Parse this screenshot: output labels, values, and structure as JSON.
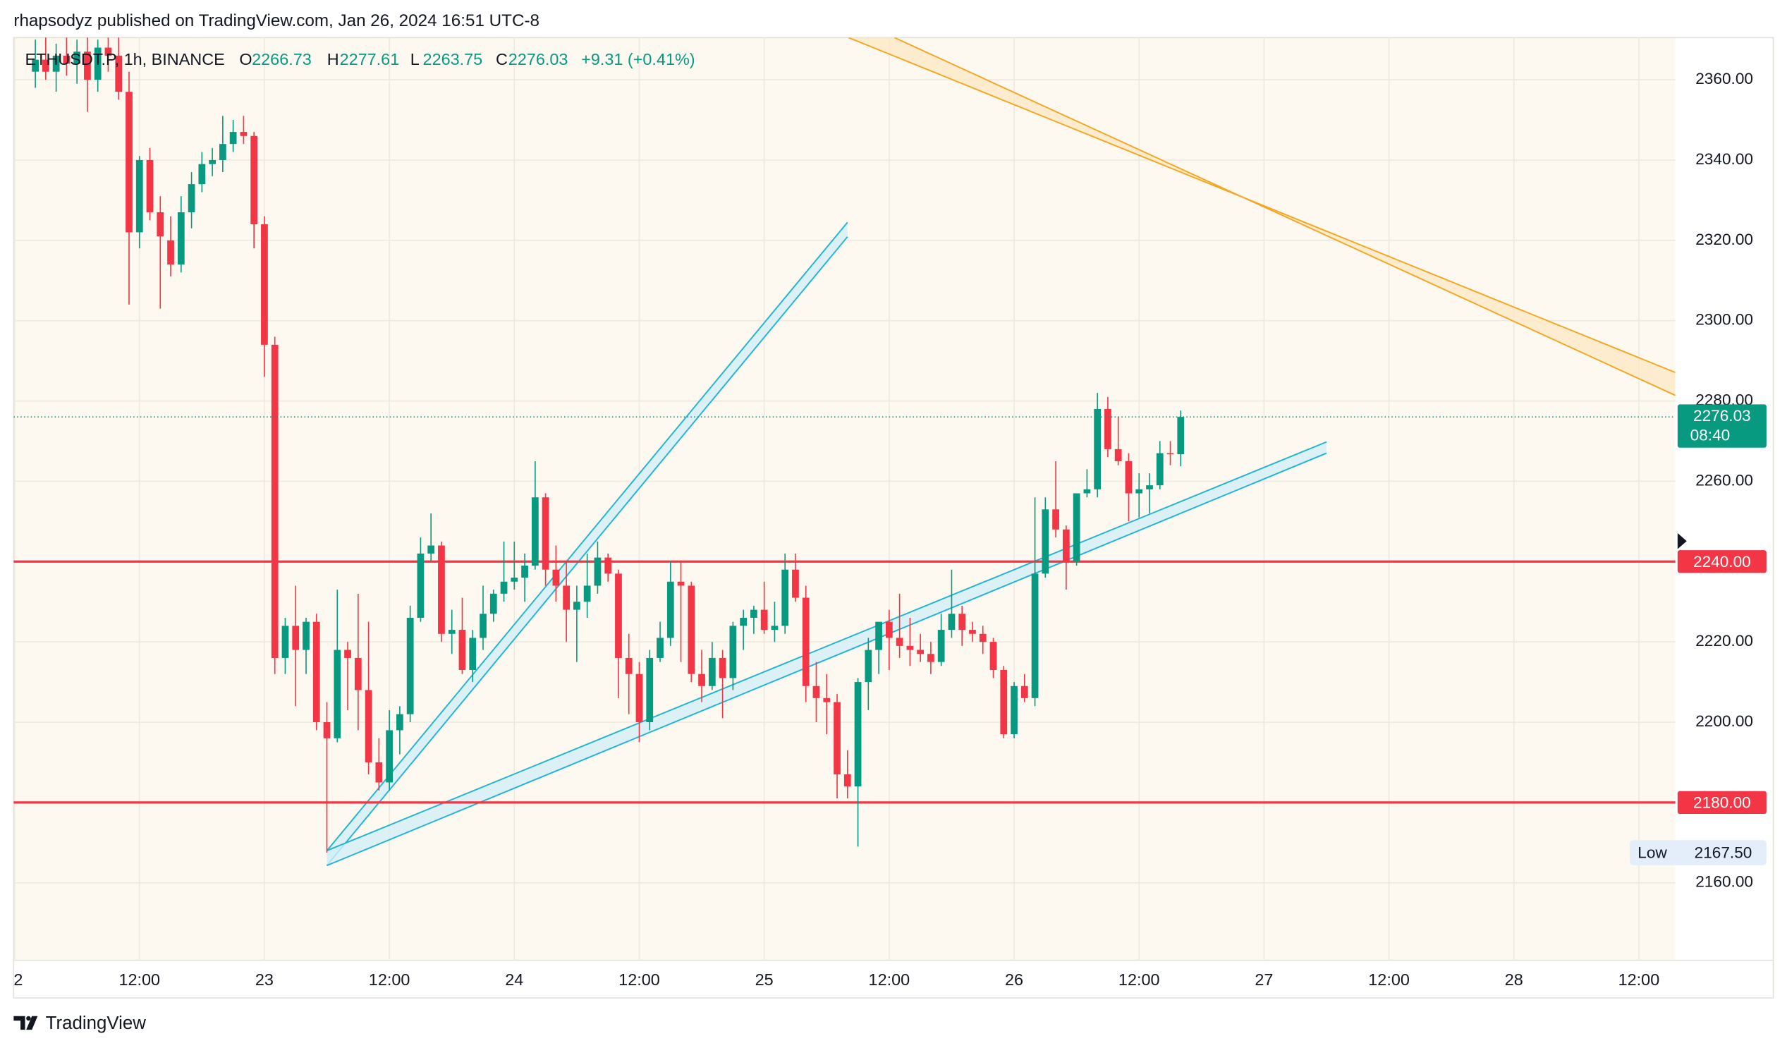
{
  "header": "rhapsodyz published on TradingView.com, Jan 26, 2024 16:51 UTC-8",
  "footer": "TradingView",
  "chart_data": {
    "type": "candlestick",
    "symbol": "ETHUSDT.P, 1h, BINANCE",
    "ohlc_letters": [
      "O",
      "H",
      "L",
      "C"
    ],
    "change": "+9.31 (+0.41%)",
    "countdown": "08:40",
    "up_color": "#089981",
    "down_color": "#f23645",
    "grid": true,
    "x": [
      2,
      3,
      4,
      5,
      6,
      7,
      8,
      9,
      10,
      11,
      12,
      13,
      14,
      15,
      16,
      17,
      18,
      19,
      20,
      21,
      22,
      23,
      24,
      25,
      26,
      27,
      28,
      29,
      30,
      31,
      32,
      33,
      34,
      35,
      36,
      37,
      38,
      39,
      40,
      41,
      42,
      43,
      44,
      45,
      46,
      47,
      48,
      49,
      50,
      51,
      52,
      53,
      54,
      55,
      56,
      57,
      58,
      59,
      60,
      61,
      62,
      63,
      64,
      65,
      66,
      67,
      68,
      69,
      70,
      71,
      72,
      73,
      74,
      75,
      76,
      77,
      78,
      79,
      80,
      81,
      82,
      83,
      84,
      85,
      86,
      87,
      88,
      89,
      90,
      91,
      92,
      93,
      94,
      95,
      96,
      97,
      98,
      99,
      100,
      101,
      102,
      103,
      104,
      105,
      106,
      107,
      108,
      109,
      110,
      111,
      112
    ],
    "open": [
      2362,
      2365,
      2362,
      2366,
      2364,
      2367,
      2360,
      2368,
      2366,
      2357,
      2322,
      2340,
      2327,
      2320,
      2314,
      2327,
      2334,
      2339,
      2340,
      2344,
      2347,
      2346,
      2324,
      2294,
      2216,
      2224,
      2218,
      2225,
      2200,
      2196,
      2218,
      2216,
      2208,
      2190,
      2185,
      2198,
      2202,
      2226,
      2242,
      2244,
      2222,
      2223,
      2213,
      2221,
      2227,
      2232,
      2235,
      2236,
      2239,
      2256,
      2238,
      2234,
      2228,
      2230,
      2234,
      2241,
      2237,
      2216,
      2212,
      2200,
      2216,
      2221,
      2235,
      2234,
      2212,
      2209,
      2216,
      2211,
      2224,
      2226,
      2228,
      2223,
      2224,
      2238,
      2231,
      2209,
      2206,
      2205,
      2187,
      2184,
      2210,
      2218,
      2225,
      2221,
      2219,
      2218,
      2217,
      2215,
      2223,
      2227,
      2223,
      2222,
      2220,
      2213,
      2197,
      2209,
      2206,
      2237,
      2253,
      2248,
      2240,
      2257,
      2258,
      2278,
      2268,
      2265,
      2257,
      2258,
      2259,
      2267,
      2266.73
    ],
    "high": [
      2370,
      2371,
      2369,
      2371,
      2370,
      2371,
      2370,
      2371,
      2371,
      2362,
      2341,
      2343,
      2331,
      2326,
      2331,
      2337,
      2342,
      2343,
      2351,
      2350,
      2351,
      2347,
      2326,
      2296,
      2226,
      2234,
      2226,
      2227,
      2205,
      2233,
      2220,
      2232,
      2225,
      2196,
      2203,
      2204,
      2229,
      2246,
      2252,
      2245,
      2228,
      2231,
      2223,
      2234,
      2233,
      2245,
      2245,
      2242,
      2265,
      2257,
      2244,
      2240,
      2234,
      2242,
      2245,
      2242,
      2238,
      2222,
      2215,
      2218,
      2225,
      2240,
      2240,
      2235,
      2218,
      2220,
      2218,
      2225,
      2228,
      2229,
      2235,
      2230,
      2242,
      2242,
      2234,
      2215,
      2212,
      2207,
      2193,
      2211,
      2221,
      2225,
      2228,
      2232,
      2226,
      2222,
      2220,
      2227,
      2238,
      2229,
      2225,
      2224,
      2221,
      2214,
      2210,
      2212,
      2256,
      2256,
      2265,
      2249,
      2257,
      2263,
      2282,
      2281,
      2276,
      2267,
      2262,
      2262,
      2270,
      2270,
      2277.61
    ],
    "low": [
      2358,
      2360,
      2357,
      2361,
      2359,
      2352,
      2357,
      2362,
      2355,
      2304,
      2318,
      2325,
      2303,
      2311,
      2312,
      2323,
      2332,
      2336,
      2337,
      2342,
      2344,
      2318,
      2286,
      2212,
      2212,
      2204,
      2212,
      2198,
      2167.5,
      2195,
      2203,
      2198,
      2187,
      2183,
      2183,
      2192,
      2200,
      2225,
      2240,
      2220,
      2217,
      2212,
      2210,
      2218,
      2225,
      2230,
      2233,
      2230,
      2238,
      2234,
      2230,
      2220,
      2215,
      2226,
      2232,
      2235,
      2206,
      2202,
      2195,
      2198,
      2215,
      2219,
      2215,
      2210,
      2205,
      2208,
      2201,
      2208,
      2218,
      2222,
      2222,
      2220,
      2222,
      2230,
      2205,
      2200,
      2197,
      2181,
      2181,
      2169,
      2203,
      2212,
      2213,
      2216,
      2214,
      2215,
      2212,
      2214,
      2221,
      2219,
      2220,
      2217,
      2211,
      2196,
      2196,
      2205,
      2204,
      2236,
      2246,
      2233,
      2239,
      2256,
      2256,
      2266,
      2264,
      2250,
      2251,
      2252,
      2258,
      2264,
      2263.75
    ],
    "close": [
      2365,
      2362,
      2366,
      2364,
      2367,
      2360,
      2368,
      2366,
      2357,
      2322,
      2340,
      2327,
      2321,
      2314,
      2327,
      2334,
      2339,
      2340,
      2344,
      2347,
      2346,
      2324,
      2294,
      2216,
      2224,
      2218,
      2225,
      2200,
      2196,
      2218,
      2216,
      2208,
      2190,
      2185,
      2198,
      2202,
      2226,
      2242,
      2244,
      2222,
      2223,
      2213,
      2221,
      2227,
      2232,
      2235,
      2236,
      2239,
      2256,
      2238,
      2234,
      2228,
      2230,
      2234,
      2241,
      2237,
      2216,
      2212,
      2200,
      2216,
      2221,
      2235,
      2234,
      2212,
      2209,
      2216,
      2211,
      2224,
      2226,
      2228,
      2223,
      2224,
      2238,
      2231,
      2209,
      2206,
      2205,
      2187,
      2184,
      2210,
      2218,
      2225,
      2221,
      2219,
      2218,
      2217,
      2215,
      2223,
      2227,
      2223,
      2222,
      2220,
      2213,
      2197,
      2209,
      2206,
      2237,
      2253,
      2248,
      2240,
      2257,
      2258,
      2278,
      2268,
      2265,
      2257,
      2258,
      2259,
      2267,
      2266.73,
      2276.03
    ],
    "xlim": [
      -0.08,
      159.5
    ],
    "xticks": [
      {
        "value": 0,
        "label": "2"
      },
      {
        "value": 12,
        "label": "12:00"
      },
      {
        "value": 24,
        "label": "23"
      },
      {
        "value": 36,
        "label": "12:00"
      },
      {
        "value": 48,
        "label": "24"
      },
      {
        "value": 60,
        "label": "12:00"
      },
      {
        "value": 72,
        "label": "25"
      },
      {
        "value": 84,
        "label": "12:00"
      },
      {
        "value": 96,
        "label": "26"
      },
      {
        "value": 108,
        "label": "12:00"
      },
      {
        "value": 120,
        "label": "27"
      },
      {
        "value": 132,
        "label": "12:00"
      },
      {
        "value": 144,
        "label": "28"
      },
      {
        "value": 156,
        "label": "12:00"
      }
    ],
    "ylim": [
      2140.7,
      2370.5
    ],
    "yticks": [
      {
        "value": 2160,
        "label": "2160.00"
      },
      {
        "value": 2180,
        "label": "2180.00"
      },
      {
        "value": 2200,
        "label": "2200.00"
      },
      {
        "value": 2220,
        "label": "2220.00"
      },
      {
        "value": 2240,
        "label": "2240.00"
      },
      {
        "value": 2260,
        "label": "2260.00"
      },
      {
        "value": 2280,
        "label": "2280.00"
      },
      {
        "value": 2300,
        "label": "2300.00"
      },
      {
        "value": 2320,
        "label": "2320.00"
      },
      {
        "value": 2340,
        "label": "2340.00"
      },
      {
        "value": 2360,
        "label": "2360.00"
      }
    ],
    "hlines": [
      {
        "value": 2240,
        "label": "2240.00",
        "color": "#f23645"
      },
      {
        "value": 2180,
        "label": "2180.00",
        "color": "#f23645"
      }
    ],
    "low_marker": {
      "label": "Low",
      "value": 2167.5,
      "value_label": "2167.50"
    },
    "channels": [
      {
        "color": "#22b3d6",
        "fill": "#d3eff7",
        "lines": [
          {
            "x": [
              30,
              80
            ],
            "y": [
              2164.3,
              2320.9
            ]
          },
          {
            "x": [
              30,
              80
            ],
            "y": [
              2168,
              2324.5
            ]
          }
        ]
      },
      {
        "color": "#22b3d6",
        "fill": "#d3eff7",
        "lines": [
          {
            "x": [
              30,
              126
            ],
            "y": [
              2164.3,
              2267
            ]
          },
          {
            "x": [
              30,
              126
            ],
            "y": [
              2168,
              2269.8
            ]
          }
        ]
      },
      {
        "color": "#f5a623",
        "fill": "#fde8c6",
        "lines": [
          {
            "x": [
              80.1,
              159.5
            ],
            "y": [
              2370.5,
              2287.1
            ]
          },
          {
            "x": [
              84.5,
              159.5
            ],
            "y": [
              2370.5,
              2281.4
            ]
          }
        ]
      }
    ]
  }
}
